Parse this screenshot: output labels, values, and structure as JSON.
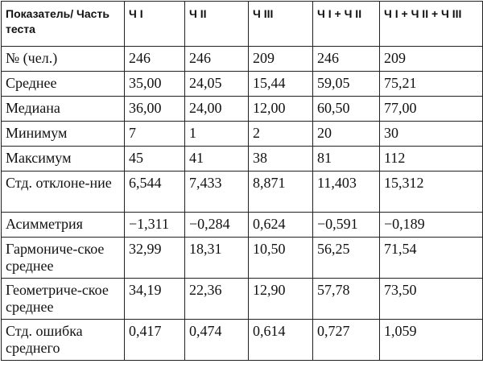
{
  "table": {
    "headers": [
      "Показатель/ Часть теста",
      "Ч I",
      "Ч II",
      "Ч III",
      "Ч I + Ч II",
      "Ч I + Ч II + Ч III"
    ],
    "rows": [
      {
        "label": "№ (чел.)",
        "values": [
          "246",
          "246",
          "209",
          "246",
          "209"
        ]
      },
      {
        "label": "Среднее",
        "values": [
          "35,00",
          "24,05",
          "15,44",
          "59,05",
          "75,21"
        ]
      },
      {
        "label": "Медиана",
        "values": [
          "36,00",
          "24,00",
          "12,00",
          "60,50",
          "77,00"
        ]
      },
      {
        "label": "Минимум",
        "values": [
          "7",
          "1",
          "2",
          "20",
          "30"
        ]
      },
      {
        "label": "Максимум",
        "values": [
          "45",
          "41",
          "38",
          "81",
          "112"
        ]
      },
      {
        "label": "Стд. отклоне-ние",
        "values": [
          "6,544",
          "7,433",
          "8,871",
          "11,403",
          "15,312"
        ]
      },
      {
        "label": "Асимметрия",
        "values": [
          "−1,311",
          "−0,284",
          "0,624",
          "−0,591",
          "−0,189"
        ]
      },
      {
        "label": "Гармониче-ское среднее",
        "values": [
          "32,99",
          "18,31",
          "10,50",
          "56,25",
          "71,54"
        ]
      },
      {
        "label": "Геометриче-ское среднее",
        "values": [
          "34,19",
          "22,36",
          "12,90",
          "57,78",
          "73,50"
        ]
      },
      {
        "label": "Стд. ошибка среднего",
        "values": [
          "0,417",
          "0,474",
          "0,614",
          "0,727",
          "1,059"
        ]
      }
    ]
  }
}
